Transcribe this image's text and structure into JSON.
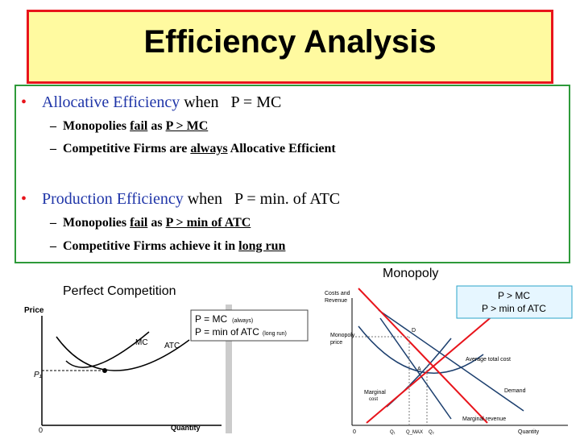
{
  "title": "Efficiency Analysis",
  "bullets": [
    {
      "head": "Allocative Efficiency",
      "tail": " when   P = MC",
      "subs": [
        [
          "Monopolies ",
          "fail",
          " as ",
          "P > MC"
        ],
        [
          "Competitive Firms are ",
          "always",
          " Allocative Efficient"
        ]
      ]
    },
    {
      "head": "Production Efficiency",
      "tail": " when   P = min. of ATC",
      "subs": [
        [
          "Monopolies ",
          "fail",
          " as ",
          "P > min of ATC"
        ],
        [
          "Competitive Firms achieve it in ",
          "long run"
        ]
      ]
    }
  ],
  "monopoly_label": "Monopoly",
  "competition_label": "Perfect Competition",
  "competition_box": [
    "P = MC",
    "(always)",
    "P = min of ATC",
    "(long run)"
  ],
  "monopoly_box": [
    "P > MC",
    "P > min of ATC"
  ],
  "left_graph": {
    "y_label": "Price",
    "mc": "MC",
    "atc": "ATC",
    "price": "P₁",
    "origin": "0",
    "x_label": "Quantity"
  },
  "right_graph": {
    "y_label": [
      "Costs and",
      "Revenue"
    ],
    "point_d": "D",
    "price": [
      "Monopoly",
      "price"
    ],
    "atc": "Average total cost",
    "point_a": "A",
    "demand": "Demand",
    "mc": [
      "Marginal",
      "cost"
    ],
    "mr": "Marginal revenue",
    "origin": "0",
    "q1": "Q₁",
    "qmax": "Q_MAX",
    "q2": "Q₂",
    "x_label": "Quantity"
  }
}
